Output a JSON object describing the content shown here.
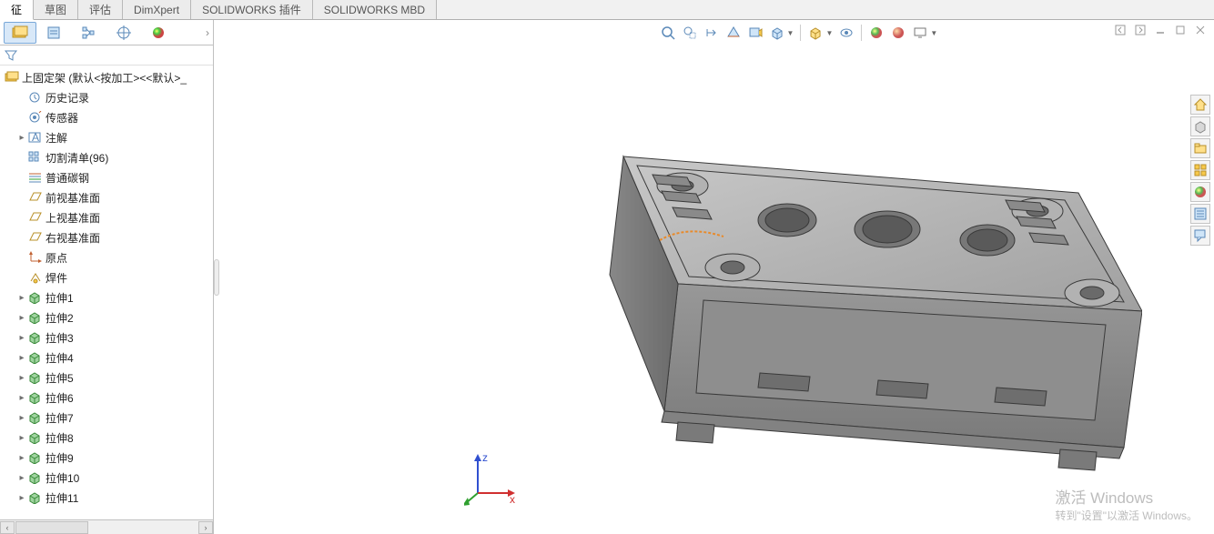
{
  "tabs": {
    "items": [
      "征",
      "草图",
      "评估",
      "DimXpert",
      "SOLIDWORKS 插件",
      "SOLIDWORKS MBD"
    ],
    "active_index": 0
  },
  "tree": {
    "root_label": "上固定架  (默认<按加工><<默认>_",
    "items": [
      {
        "label": "历史记录",
        "icon": "history",
        "expandable": false
      },
      {
        "label": "传感器",
        "icon": "sensor",
        "expandable": false
      },
      {
        "label": "注解",
        "icon": "annot",
        "expandable": true
      },
      {
        "label": "切割清单(96)",
        "icon": "cutlist",
        "expandable": false
      },
      {
        "label": "普通碳钢",
        "icon": "material",
        "expandable": false
      },
      {
        "label": "前视基准面",
        "icon": "plane",
        "expandable": false
      },
      {
        "label": "上视基准面",
        "icon": "plane",
        "expandable": false
      },
      {
        "label": "右视基准面",
        "icon": "plane",
        "expandable": false
      },
      {
        "label": "原点",
        "icon": "origin",
        "expandable": false
      },
      {
        "label": "焊件",
        "icon": "weld",
        "expandable": false
      },
      {
        "label": "拉伸1",
        "icon": "extrude",
        "expandable": true
      },
      {
        "label": "拉伸2",
        "icon": "extrude",
        "expandable": true
      },
      {
        "label": "拉伸3",
        "icon": "extrude",
        "expandable": true
      },
      {
        "label": "拉伸4",
        "icon": "extrude",
        "expandable": true
      },
      {
        "label": "拉伸5",
        "icon": "extrude",
        "expandable": true
      },
      {
        "label": "拉伸6",
        "icon": "extrude",
        "expandable": true
      },
      {
        "label": "拉伸7",
        "icon": "extrude",
        "expandable": true
      },
      {
        "label": "拉伸8",
        "icon": "extrude",
        "expandable": true
      },
      {
        "label": "拉伸9",
        "icon": "extrude",
        "expandable": true
      },
      {
        "label": "拉伸10",
        "icon": "extrude",
        "expandable": true
      },
      {
        "label": "拉伸11",
        "icon": "extrude",
        "expandable": true
      }
    ]
  },
  "triad": {
    "x": "x",
    "z": "z",
    "x_color": "#d03030",
    "y_color": "#30a030",
    "z_color": "#3050d0"
  },
  "watermark": {
    "line1": "激活 Windows",
    "line2": "转到\"设置\"以激活 Windows。"
  },
  "colors": {
    "panel_border": "#c0c0c0",
    "model_fill": "#a8a8a8",
    "model_stroke": "#3a3a3a",
    "model_top": "#bcbcbc",
    "model_hole": "#6a6a6a",
    "accent_orange": "#e88a2a"
  },
  "icons": {
    "left_toolbar": [
      "part-gold",
      "config-blue",
      "dim-tree",
      "target",
      "appearance-sphere"
    ],
    "view_toolbar": [
      "zoom-fit",
      "zoom-area",
      "prev-view",
      "section",
      "display-style",
      "scene",
      "view-orient",
      "hide-show",
      "appearance",
      "render",
      "display-pane"
    ],
    "side_panel": [
      "home",
      "library",
      "props",
      "appearance-panel",
      "sphere-panel",
      "list-panel",
      "callout-panel"
    ]
  }
}
